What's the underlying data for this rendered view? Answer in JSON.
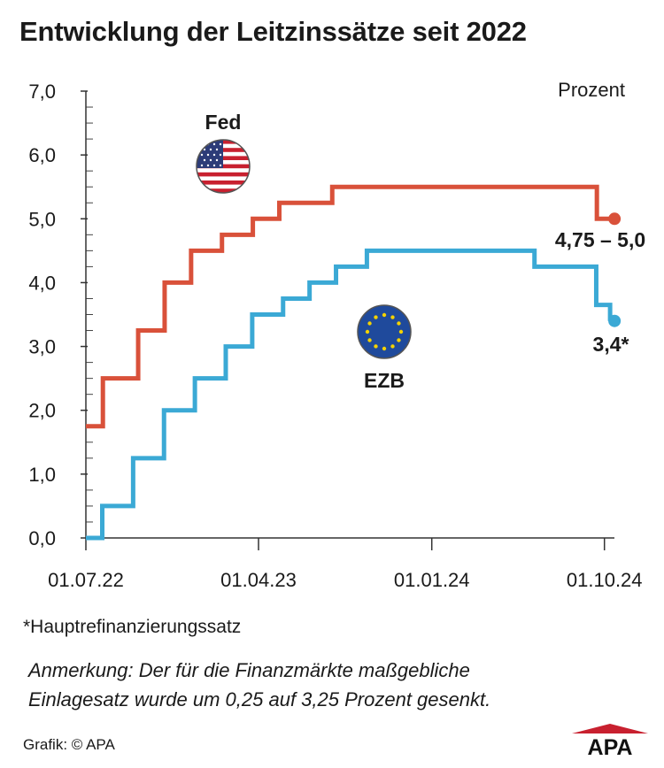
{
  "chart_data": {
    "type": "line",
    "title": "Entwicklung der Leitzinssätze seit 2022",
    "unit_label": "Prozent",
    "ylim": [
      0,
      7
    ],
    "y_ticks": [
      "0,0",
      "1,0",
      "2,0",
      "3,0",
      "4,0",
      "5,0",
      "6,0",
      "7,0"
    ],
    "x_ticks": [
      "01.07.22",
      "01.04.23",
      "01.01.24",
      "01.10.24"
    ],
    "x_range": [
      "2022-07-01",
      "2024-10-10"
    ],
    "step": true,
    "series": [
      {
        "name": "Fed",
        "color": "#d9513a",
        "end_label": "4,75 – 5,0",
        "points": [
          [
            "2022-07-01",
            1.75
          ],
          [
            "2022-07-28",
            2.5
          ],
          [
            "2022-09-22",
            3.25
          ],
          [
            "2022-11-03",
            4.0
          ],
          [
            "2022-12-15",
            4.5
          ],
          [
            "2023-02-02",
            4.75
          ],
          [
            "2023-03-23",
            5.0
          ],
          [
            "2023-05-04",
            5.25
          ],
          [
            "2023-07-27",
            5.5
          ],
          [
            "2024-09-19",
            5.0
          ],
          [
            "2024-10-10",
            5.0
          ]
        ]
      },
      {
        "name": "EZB",
        "color": "#3ba9d5",
        "end_label": "3,4*",
        "points": [
          [
            "2022-07-01",
            0.0
          ],
          [
            "2022-07-27",
            0.5
          ],
          [
            "2022-09-14",
            1.25
          ],
          [
            "2022-11-02",
            2.0
          ],
          [
            "2022-12-21",
            2.5
          ],
          [
            "2023-02-08",
            3.0
          ],
          [
            "2023-03-22",
            3.5
          ],
          [
            "2023-05-10",
            3.75
          ],
          [
            "2023-06-21",
            4.0
          ],
          [
            "2023-08-02",
            4.25
          ],
          [
            "2023-09-20",
            4.5
          ],
          [
            "2024-06-12",
            4.25
          ],
          [
            "2024-09-18",
            3.65
          ],
          [
            "2024-10-10",
            3.4
          ]
        ]
      }
    ]
  },
  "footnote": "*Hauptrefinanzierungssatz",
  "note_line1": "Anmerkung: Der für die Finanzmärkte maßgebliche",
  "note_line2": "Einlagesatz wurde um 0,25 auf 3,25 Prozent gesenkt.",
  "credit": "Grafik: © APA",
  "logo_text": "APA",
  "icons": {
    "fed": "us-flag-icon",
    "ezb": "eu-flag-icon"
  }
}
